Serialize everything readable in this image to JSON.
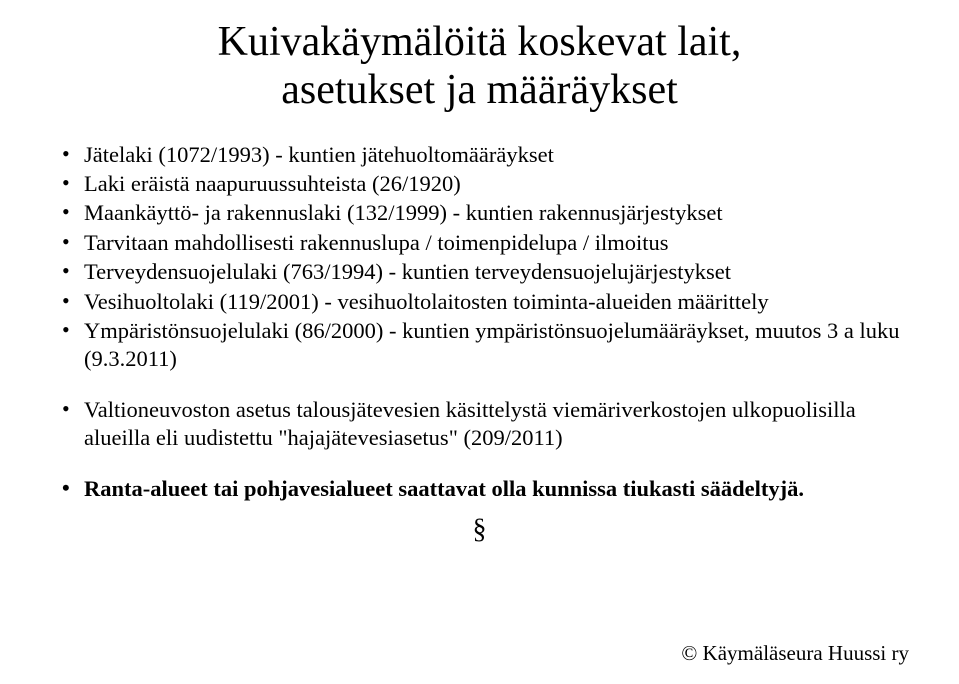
{
  "title_line1": "Kuivakäymälöitä koskevat lait,",
  "title_line2": "asetukset ja määräykset",
  "bullets": [
    "Jätelaki (1072/1993) - kuntien jätehuoltomääräykset",
    "Laki eräistä naapuruussuhteista (26/1920)",
    "Maankäyttö- ja rakennuslaki (132/1999) - kuntien rakennusjärjestykset",
    "Tarvitaan mahdollisesti rakennuslupa / toimenpidelupa / ilmoitus",
    "Terveydensuojelulaki (763/1994) - kuntien terveydensuojelujärjestykset",
    "Vesihuoltolaki (119/2001) - vesihuoltolaitosten toiminta-alueiden määrittely",
    "Ympäristönsuojelulaki (86/2000) - kuntien ympäristönsuojelumääräykset, muutos 3 a luku (9.3.2011)"
  ],
  "bullets2": [
    "Valtioneuvoston asetus talousjätevesien käsittelystä viemäriverkostojen ulkopuolisilla alueilla eli uudistettu \"hajajätevesiasetus\" (209/2011)"
  ],
  "bullets3": [
    "Ranta-alueet tai pohjavesialueet saattavat olla kunnissa tiukasti säädeltyjä."
  ],
  "section_symbol": "§",
  "footer": "© Käymäläseura Huussi ry",
  "colors": {
    "background": "#ffffff",
    "text": "#000000"
  },
  "typography": {
    "font_family": "Georgia",
    "title_fontsize_pt": 32,
    "body_fontsize_pt": 17,
    "footer_fontsize_pt": 16
  }
}
